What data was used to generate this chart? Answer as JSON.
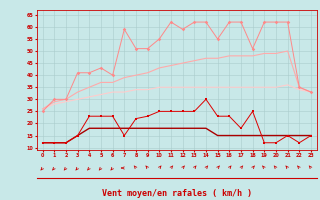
{
  "background_color": "#c8e8e8",
  "grid_color": "#aacccc",
  "xlabel": "Vent moyen/en rafales ( km/h )",
  "xlabel_color": "#cc0000",
  "xlabel_fontsize": 6,
  "xtick_labels": [
    "0",
    "1",
    "2",
    "3",
    "4",
    "5",
    "6",
    "7",
    "8",
    "9",
    "10",
    "11",
    "12",
    "13",
    "14",
    "15",
    "16",
    "17",
    "18",
    "19",
    "20",
    "21",
    "22",
    "23"
  ],
  "ytick_labels": [
    "10",
    "15",
    "20",
    "25",
    "30",
    "35",
    "40",
    "45",
    "50",
    "55",
    "60",
    "65"
  ],
  "yticks": [
    10,
    15,
    20,
    25,
    30,
    35,
    40,
    45,
    50,
    55,
    60,
    65
  ],
  "ylim": [
    9,
    67
  ],
  "xlim": [
    -0.5,
    23.5
  ],
  "line1_color": "#dd0000",
  "line1_y": [
    12,
    12,
    12,
    15,
    23,
    23,
    23,
    15,
    22,
    23,
    25,
    25,
    25,
    25,
    30,
    23,
    23,
    18,
    25,
    12,
    12,
    15,
    12,
    15
  ],
  "line2_color": "#aa0000",
  "line2_y": [
    12,
    12,
    12,
    15,
    18,
    18,
    18,
    18,
    18,
    18,
    18,
    18,
    18,
    18,
    18,
    15,
    15,
    15,
    15,
    15,
    15,
    15,
    15,
    15
  ],
  "line3_color": "#ff8888",
  "line3_y": [
    25,
    30,
    30,
    41,
    41,
    43,
    40,
    59,
    51,
    51,
    55,
    62,
    59,
    62,
    62,
    55,
    62,
    62,
    51,
    62,
    62,
    62,
    35,
    33
  ],
  "line4_color": "#ffaaaa",
  "line4_y": [
    26,
    29,
    30,
    33,
    35,
    37,
    37,
    39,
    40,
    41,
    43,
    44,
    45,
    46,
    47,
    47,
    48,
    48,
    48,
    49,
    49,
    50,
    35,
    33
  ],
  "line5_color": "#ffcccc",
  "line5_y": [
    26,
    28,
    29,
    30,
    31,
    32,
    33,
    33,
    34,
    34,
    35,
    35,
    35,
    35,
    35,
    35,
    35,
    35,
    35,
    35,
    35,
    36,
    34,
    33
  ],
  "arrow_angles_deg": [
    220,
    220,
    220,
    220,
    220,
    220,
    220,
    270,
    320,
    320,
    40,
    40,
    40,
    40,
    40,
    40,
    40,
    40,
    40,
    320,
    320,
    320,
    320,
    320
  ]
}
